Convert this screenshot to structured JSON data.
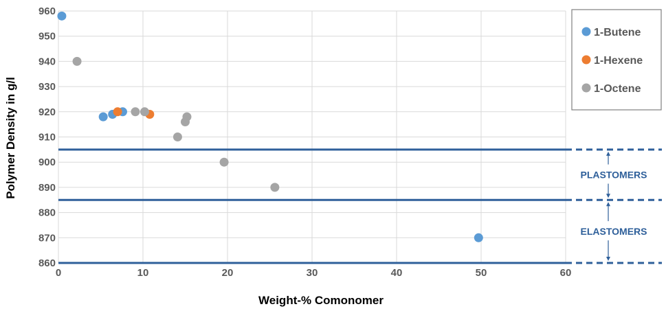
{
  "chart_data": {
    "type": "scatter",
    "xlabel": "Weight-% Comonomer",
    "ylabel": "Polymer Density in g/l",
    "xlim": [
      0,
      60
    ],
    "ylim": [
      860,
      960
    ],
    "x_ticks": [
      "0",
      "10",
      "20",
      "30",
      "40",
      "50",
      "60"
    ],
    "y_ticks": [
      "860",
      "870",
      "880",
      "890",
      "900",
      "910",
      "920",
      "930",
      "940",
      "950",
      "960"
    ],
    "grid": true,
    "legend_position": "top-right",
    "series": [
      {
        "name": "1-Butene",
        "color": "#5B9BD5",
        "points": [
          [
            0.4,
            958
          ],
          [
            5.3,
            918
          ],
          [
            6.4,
            919
          ],
          [
            7.6,
            920
          ],
          [
            49.7,
            870
          ]
        ]
      },
      {
        "name": "1-Hexene",
        "color": "#ED7D31",
        "points": [
          [
            7.0,
            920
          ],
          [
            10.8,
            919
          ]
        ]
      },
      {
        "name": "1-Octene",
        "color": "#A5A5A5",
        "points": [
          [
            2.2,
            940
          ],
          [
            9.1,
            920
          ],
          [
            10.2,
            920
          ],
          [
            14.1,
            910
          ],
          [
            15.0,
            916
          ],
          [
            15.2,
            918
          ],
          [
            19.6,
            900
          ],
          [
            25.6,
            890
          ]
        ]
      }
    ],
    "reference_lines": [
      {
        "y": 905,
        "color": "#2E5F9A"
      },
      {
        "y": 885,
        "color": "#2E5F9A"
      },
      {
        "y": 860,
        "color": "#2E5F9A"
      }
    ],
    "regions": [
      {
        "label": "PLASTOMERS",
        "from": 885,
        "to": 905
      },
      {
        "label": "ELASTOMERS",
        "from": 860,
        "to": 885
      }
    ]
  }
}
